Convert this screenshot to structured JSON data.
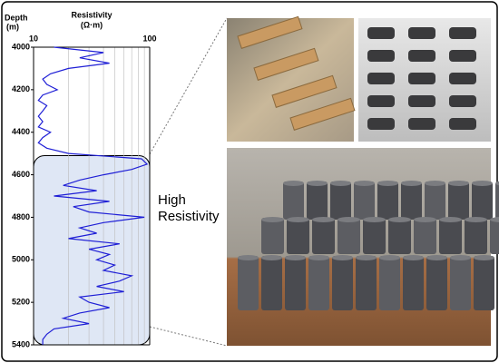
{
  "chart_data": {
    "type": "line",
    "log_x": true,
    "y_label": "Depth",
    "y_unit": "(m)",
    "x_label": "Resistivity",
    "x_unit": "(Ω·m)",
    "y": [
      4000,
      4025,
      4050,
      4075,
      4100,
      4125,
      4150,
      4175,
      4200,
      4225,
      4250,
      4275,
      4300,
      4325,
      4350,
      4375,
      4400,
      4425,
      4450,
      4475,
      4500,
      4525,
      4550,
      4575,
      4600,
      4625,
      4650,
      4675,
      4700,
      4725,
      4750,
      4775,
      4800,
      4825,
      4850,
      4875,
      4900,
      4925,
      4950,
      4975,
      5000,
      5025,
      5050,
      5075,
      5100,
      5125,
      5150,
      5175,
      5200,
      5225,
      5250,
      5275,
      5300,
      5325,
      5350,
      5375,
      5400
    ],
    "series": [
      {
        "color": "#1f1fd6",
        "values": [
          15,
          40,
          25,
          45,
          20,
          14,
          12,
          13,
          16,
          12,
          11,
          13,
          12,
          11,
          12,
          11,
          14,
          12,
          11,
          13,
          20,
          85,
          95,
          70,
          40,
          25,
          18,
          35,
          15,
          45,
          22,
          30,
          90,
          40,
          25,
          35,
          20,
          55,
          30,
          45,
          35,
          50,
          40,
          70,
          55,
          35,
          60,
          25,
          30,
          45,
          25,
          18,
          30,
          15,
          13,
          12,
          12
        ]
      }
    ],
    "xlim": [
      10,
      100
    ],
    "xticks": [
      10,
      100
    ],
    "xminor_ticks": [
      20,
      30,
      40,
      50,
      60,
      70,
      80,
      90
    ],
    "ylim": [
      4000,
      5400
    ],
    "yticks": [
      4000,
      4200,
      4400,
      4600,
      4800,
      5000,
      5200,
      5400
    ],
    "highlight": {
      "label": "High Resistivity",
      "ylim": [
        4510,
        5400
      ],
      "color": "#dfe7f5"
    }
  }
}
